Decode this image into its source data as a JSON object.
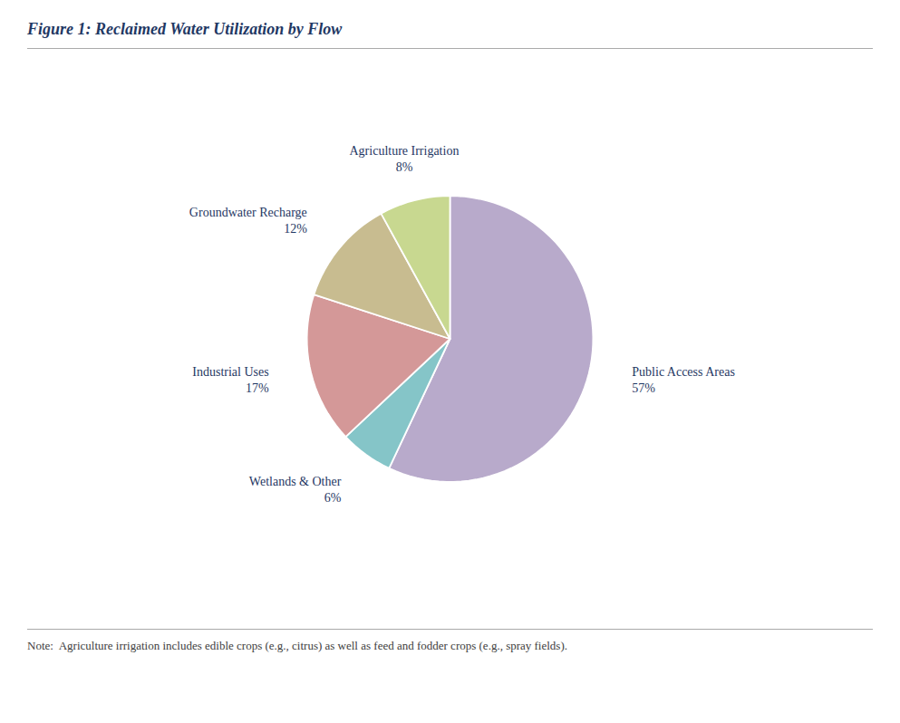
{
  "chart_data": {
    "type": "pie",
    "title": "Figure 1: Reclaimed Water Utilization by Flow",
    "note": "Note:  Agriculture irrigation includes edible crops (e.g., citrus) as well as feed and fodder crops (e.g., spray fields).",
    "categories": [
      "Public Access Areas",
      "Wetlands & Other",
      "Industrial Uses",
      "Groundwater Recharge",
      "Agriculture Irrigation"
    ],
    "values": [
      57,
      6,
      17,
      12,
      8
    ],
    "value_labels": [
      "57%",
      "6%",
      "17%",
      "12%",
      "8%"
    ],
    "colors": [
      "#b8aacb",
      "#85c5c8",
      "#d49898",
      "#c8bc90",
      "#c8d890"
    ],
    "data_labels": true
  }
}
